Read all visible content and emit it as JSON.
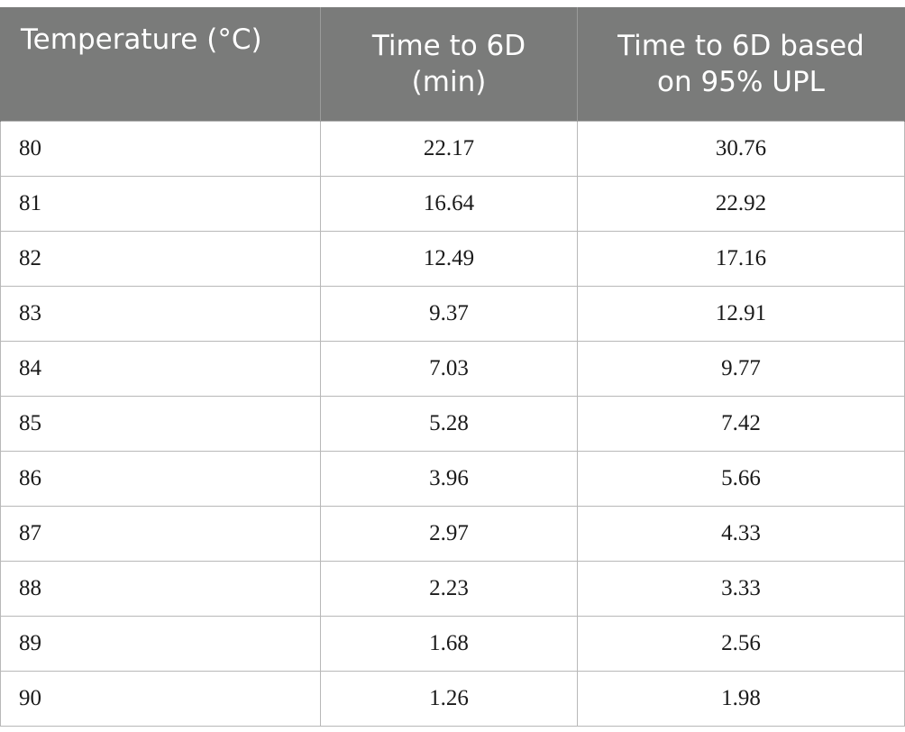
{
  "table": {
    "headers": [
      {
        "line1": "Temperature (°C)",
        "line2": ""
      },
      {
        "line1": "Time to 6D",
        "line2": "(min)"
      },
      {
        "line1": "Time to 6D based",
        "line2": "on 95% UPL"
      }
    ],
    "rows": [
      [
        "80",
        "22.17",
        "30.76"
      ],
      [
        "81",
        "16.64",
        "22.92"
      ],
      [
        "82",
        "12.49",
        "17.16"
      ],
      [
        "83",
        "9.37",
        "12.91"
      ],
      [
        "84",
        "7.03",
        "9.77"
      ],
      [
        "85",
        "5.28",
        "7.42"
      ],
      [
        "86",
        "3.96",
        "5.66"
      ],
      [
        "87",
        "2.97",
        "4.33"
      ],
      [
        "88",
        "2.23",
        "3.33"
      ],
      [
        "89",
        "1.68",
        "2.56"
      ],
      [
        "90",
        "1.26",
        "1.98"
      ]
    ]
  },
  "colors": {
    "header_bg": "#7a7b7a",
    "header_text": "#ffffff",
    "grid": "#b8b8b8",
    "body_text": "#1a1a1a"
  }
}
